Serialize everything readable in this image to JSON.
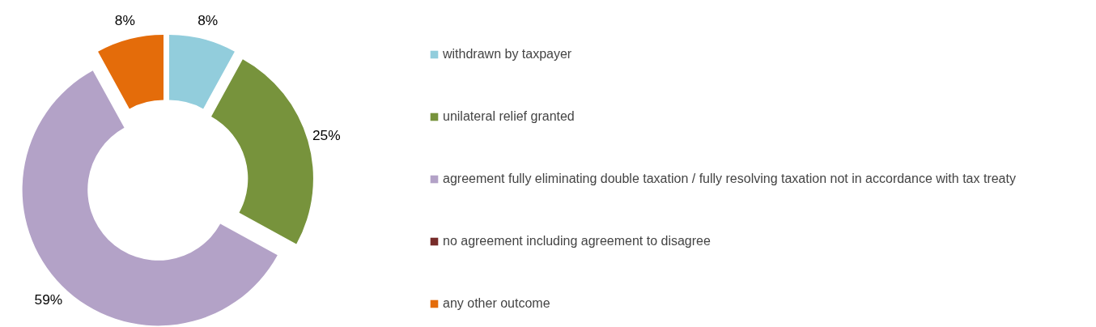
{
  "chart_data": {
    "type": "donut",
    "categories": [
      "withdrawn by taxpayer",
      "unilateral relief granted",
      "agreement fully eliminating double taxation / fully resolving taxation not in accordance with tax treaty",
      "no agreement including agreement to disagree",
      "any other outcome"
    ],
    "values": [
      8,
      25,
      59,
      0,
      8
    ],
    "colors": [
      "#92cddc",
      "#77933c",
      "#b3a2c7",
      "#772c2a",
      "#e46c0a"
    ],
    "value_labels": [
      "8%",
      "25%",
      "59%",
      null,
      "8%"
    ],
    "legend": "right"
  }
}
